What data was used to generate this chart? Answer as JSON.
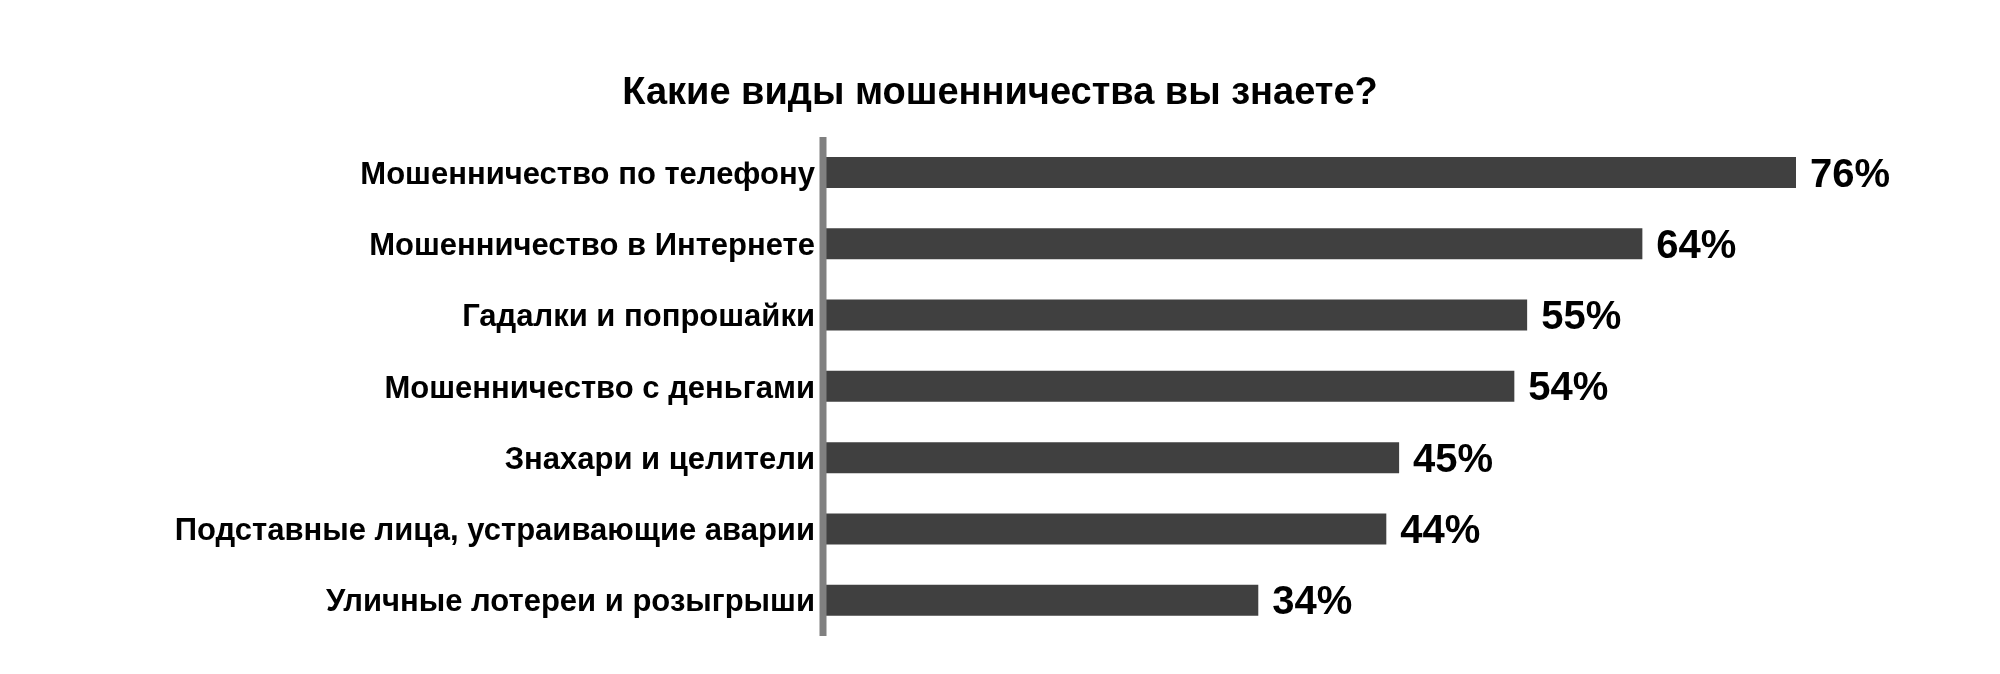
{
  "chart_data": {
    "type": "bar",
    "orientation": "horizontal",
    "title": "Какие виды мошенничества вы знаете?",
    "categories": [
      "Мошенничество по телефону",
      "Мошенничество в Интернете",
      "Гадалки и попрошайки",
      "Мошенничество с деньгами",
      "Знахари и целители",
      "Подставные лица, устраивающие аварии",
      "Уличные лотереи и розыгрыши"
    ],
    "values": [
      76,
      64,
      55,
      54,
      45,
      44,
      34
    ],
    "value_labels": [
      "76%",
      "64%",
      "55%",
      "54%",
      "45%",
      "44%",
      "34%"
    ],
    "color": "#404040"
  }
}
